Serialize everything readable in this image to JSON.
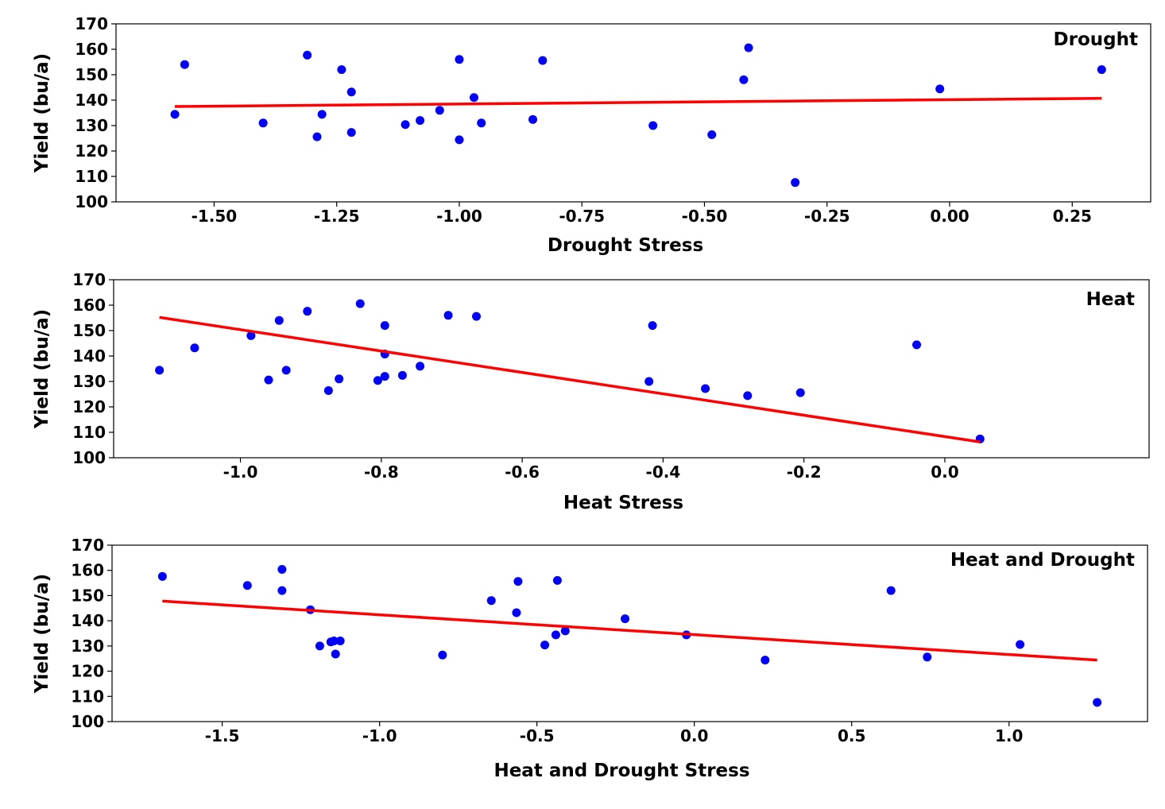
{
  "chart_data": [
    {
      "type": "scatter",
      "title": "Drought",
      "xlabel": "Drought Stress",
      "ylabel": "Yield (bu/a)",
      "xlim": [
        -1.7,
        0.41
      ],
      "ylim": [
        100,
        170
      ],
      "xticks": [
        -1.5,
        -1.25,
        -1.0,
        -0.75,
        -0.5,
        -0.25,
        0.0,
        0.25
      ],
      "xtick_labels": [
        "-1.50",
        "-1.25",
        "-1.00",
        "-0.75",
        "-0.50",
        "-0.25",
        "0.00",
        "0.25"
      ],
      "yticks": [
        100,
        110,
        120,
        130,
        140,
        150,
        160,
        170
      ],
      "ytick_labels": [
        "100",
        "110",
        "120",
        "130",
        "140",
        "150",
        "160",
        "170"
      ],
      "points": [
        [
          -1.58,
          134.4
        ],
        [
          -1.56,
          154.0
        ],
        [
          -1.4,
          131.0
        ],
        [
          -1.31,
          157.7
        ],
        [
          -1.29,
          125.6
        ],
        [
          -1.28,
          134.4
        ],
        [
          -1.24,
          152.0
        ],
        [
          -1.22,
          143.2
        ],
        [
          -1.22,
          127.3
        ],
        [
          -1.11,
          130.4
        ],
        [
          -1.08,
          132.0
        ],
        [
          -1.04,
          136.0
        ],
        [
          -1.0,
          156.0
        ],
        [
          -1.0,
          124.4
        ],
        [
          -0.97,
          141.0
        ],
        [
          -0.955,
          131.0
        ],
        [
          -0.85,
          132.4
        ],
        [
          -0.83,
          155.6
        ],
        [
          -0.605,
          130.0
        ],
        [
          -0.485,
          126.4
        ],
        [
          -0.42,
          148.0
        ],
        [
          -0.41,
          160.6
        ],
        [
          -0.315,
          107.6
        ],
        [
          -0.02,
          144.4
        ],
        [
          0.31,
          152.0
        ]
      ],
      "fit_line": {
        "x": [
          -1.58,
          0.31
        ],
        "y": [
          137.5,
          140.7
        ]
      }
    },
    {
      "type": "scatter",
      "title": "Heat",
      "xlabel": "Heat Stress",
      "ylabel": "Yield (bu/a)",
      "xlim": [
        -1.18,
        0.29
      ],
      "ylim": [
        100,
        170
      ],
      "xticks": [
        -1.0,
        -0.8,
        -0.6,
        -0.4,
        -0.2,
        0.0
      ],
      "xtick_labels": [
        "-1.0",
        "-0.8",
        "-0.6",
        "-0.4",
        "-0.2",
        "0.0"
      ],
      "yticks": [
        100,
        110,
        120,
        130,
        140,
        150,
        160,
        170
      ],
      "ytick_labels": [
        "100",
        "110",
        "120",
        "130",
        "140",
        "150",
        "160",
        "170"
      ],
      "points": [
        [
          -1.115,
          134.4
        ],
        [
          -1.065,
          143.2
        ],
        [
          -0.985,
          148.0
        ],
        [
          -0.96,
          130.6
        ],
        [
          -0.945,
          154.0
        ],
        [
          -0.935,
          134.4
        ],
        [
          -0.905,
          157.6
        ],
        [
          -0.875,
          126.4
        ],
        [
          -0.86,
          131.0
        ],
        [
          -0.83,
          160.6
        ],
        [
          -0.805,
          130.4
        ],
        [
          -0.795,
          152.0
        ],
        [
          -0.795,
          140.8
        ],
        [
          -0.795,
          132.0
        ],
        [
          -0.77,
          132.4
        ],
        [
          -0.745,
          136.0
        ],
        [
          -0.705,
          156.0
        ],
        [
          -0.665,
          155.6
        ],
        [
          -0.42,
          130.0
        ],
        [
          -0.415,
          152.0
        ],
        [
          -0.34,
          127.2
        ],
        [
          -0.28,
          124.4
        ],
        [
          -0.205,
          125.6
        ],
        [
          -0.04,
          144.4
        ],
        [
          0.05,
          107.4
        ]
      ],
      "fit_line": {
        "x": [
          -1.115,
          0.05
        ],
        "y": [
          155.2,
          106.2
        ]
      }
    },
    {
      "type": "scatter",
      "title": "Heat and Drought",
      "xlabel": "Heat and Drought Stress",
      "ylabel": "Yield (bu/a)",
      "xlim": [
        -1.85,
        1.44
      ],
      "ylim": [
        100,
        170
      ],
      "xticks": [
        -1.5,
        -1.0,
        -0.5,
        0.0,
        0.5,
        1.0
      ],
      "xtick_labels": [
        "-1.5",
        "-1.0",
        "-0.5",
        "0.0",
        "0.5",
        "1.0"
      ],
      "yticks": [
        100,
        110,
        120,
        130,
        140,
        150,
        160,
        170
      ],
      "ytick_labels": [
        "100",
        "110",
        "120",
        "130",
        "140",
        "150",
        "160",
        "170"
      ],
      "points": [
        [
          -1.69,
          157.6
        ],
        [
          -1.42,
          154.0
        ],
        [
          -1.31,
          160.4
        ],
        [
          -1.31,
          152.0
        ],
        [
          -1.22,
          144.4
        ],
        [
          -1.19,
          130.0
        ],
        [
          -1.155,
          131.6
        ],
        [
          -1.145,
          132.0
        ],
        [
          -1.14,
          126.8
        ],
        [
          -1.125,
          132.0
        ],
        [
          -0.8,
          126.4
        ],
        [
          -0.645,
          148.0
        ],
        [
          -0.565,
          143.2
        ],
        [
          -0.56,
          155.6
        ],
        [
          -0.475,
          130.4
        ],
        [
          -0.44,
          134.4
        ],
        [
          -0.435,
          156.0
        ],
        [
          -0.41,
          136.0
        ],
        [
          -0.22,
          140.8
        ],
        [
          -0.025,
          134.4
        ],
        [
          0.225,
          124.4
        ],
        [
          0.625,
          152.0
        ],
        [
          0.74,
          125.6
        ],
        [
          1.035,
          130.6
        ],
        [
          1.28,
          107.6
        ]
      ],
      "fit_line": {
        "x": [
          -1.69,
          1.28
        ],
        "y": [
          147.8,
          124.4
        ]
      }
    }
  ]
}
